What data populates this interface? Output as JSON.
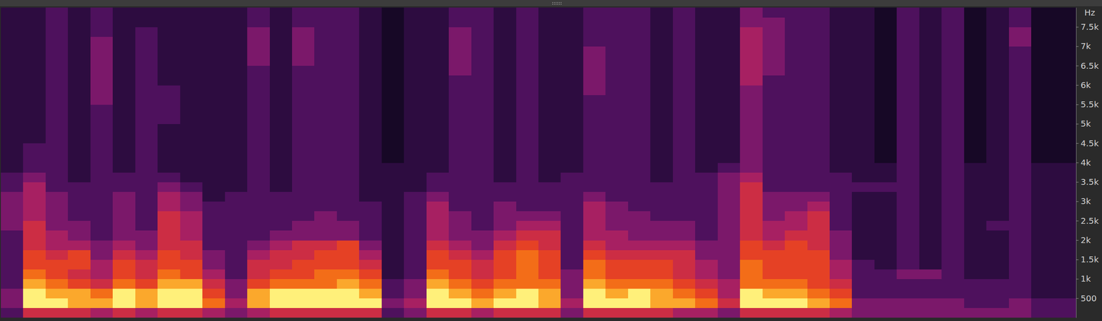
{
  "chart_data": {
    "type": "heatmap",
    "y_label": "Hz",
    "tick_labels": "y",
    "ylim": [
      0,
      8000
    ],
    "yticks": [
      500,
      {
        "value": 1000,
        "label": "1k"
      },
      {
        "value": 1500,
        "label": "1.5k"
      },
      {
        "value": 2000,
        "label": "2k"
      },
      {
        "value": 2500,
        "label": "2.5k"
      },
      {
        "value": 3000,
        "label": "3k"
      },
      {
        "value": 3500,
        "label": "3.5k"
      },
      {
        "value": 4000,
        "label": "4k"
      },
      {
        "value": 4500,
        "label": "4.5k"
      },
      {
        "value": 5000,
        "label": "5k"
      },
      {
        "value": 5500,
        "label": "5.5k"
      },
      {
        "value": 6000,
        "label": "6k"
      },
      {
        "value": 6500,
        "label": "6.5k"
      },
      {
        "value": 7000,
        "label": "7k"
      },
      {
        "value": 7500,
        "label": "7.5k"
      }
    ],
    "zlim": [
      0,
      9
    ],
    "cells": [
      [
        2,
        3,
        3,
        2,
        2,
        2,
        2,
        2,
        2,
        3,
        3,
        3,
        3,
        2,
        2,
        1,
        1,
        1,
        1,
        1,
        1,
        1,
        1,
        1,
        1,
        1,
        1,
        1,
        1,
        1,
        1,
        1
      ],
      [
        5,
        9,
        9,
        8,
        7,
        6,
        6,
        5,
        5,
        5,
        4,
        4,
        4,
        4,
        3,
        2,
        2,
        2,
        1,
        1,
        1,
        1,
        1,
        1,
        1,
        1,
        1,
        1,
        1,
        1,
        1,
        1
      ],
      [
        5,
        9,
        8,
        7,
        6,
        6,
        5,
        4,
        4,
        3,
        3,
        3,
        3,
        2,
        2,
        2,
        2,
        2,
        2,
        2,
        2,
        2,
        2,
        2,
        2,
        2,
        2,
        2,
        2,
        2,
        2,
        2
      ],
      [
        5,
        8,
        8,
        6,
        5,
        6,
        6,
        4,
        3,
        3,
        2,
        2,
        2,
        2,
        1,
        1,
        1,
        1,
        1,
        1,
        1,
        1,
        1,
        1,
        1,
        1,
        1,
        1,
        1,
        1,
        1,
        1
      ],
      [
        4,
        8,
        7,
        5,
        4,
        4,
        3,
        3,
        2,
        2,
        2,
        2,
        2,
        2,
        2,
        2,
        2,
        2,
        2,
        2,
        2,
        2,
        3,
        3,
        3,
        3,
        3,
        3,
        3,
        2,
        2,
        2
      ],
      [
        5,
        9,
        9,
        7,
        6,
        6,
        5,
        4,
        3,
        3,
        3,
        3,
        3,
        2,
        2,
        1,
        1,
        1,
        1,
        1,
        1,
        1,
        1,
        1,
        1,
        1,
        1,
        1,
        1,
        1,
        1,
        1
      ],
      [
        4,
        8,
        8,
        6,
        5,
        5,
        4,
        3,
        3,
        2,
        2,
        2,
        2,
        2,
        2,
        2,
        2,
        2,
        2,
        2,
        2,
        2,
        2,
        2,
        2,
        2,
        2,
        2,
        2,
        2,
        1,
        1
      ],
      [
        5,
        9,
        9,
        8,
        7,
        6,
        6,
        5,
        5,
        5,
        5,
        4,
        4,
        3,
        2,
        1,
        1,
        1,
        1,
        1,
        2,
        2,
        2,
        2,
        1,
        1,
        1,
        1,
        1,
        1,
        1,
        1
      ],
      [
        5,
        9,
        9,
        8,
        6,
        6,
        5,
        5,
        4,
        4,
        4,
        3,
        3,
        2,
        1,
        1,
        1,
        1,
        1,
        1,
        1,
        1,
        1,
        1,
        1,
        1,
        1,
        1,
        1,
        1,
        1,
        1
      ],
      [
        4,
        7,
        6,
        5,
        4,
        3,
        3,
        2,
        2,
        2,
        2,
        2,
        1,
        1,
        1,
        1,
        1,
        1,
        1,
        1,
        1,
        1,
        1,
        1,
        1,
        1,
        1,
        1,
        1,
        1,
        1,
        1
      ],
      [
        3,
        4,
        3,
        3,
        2,
        2,
        2,
        2,
        2,
        2,
        2,
        2,
        2,
        1,
        1,
        1,
        1,
        1,
        1,
        1,
        1,
        1,
        1,
        1,
        1,
        1,
        1,
        1,
        1,
        1,
        1,
        1
      ],
      [
        4,
        8,
        8,
        6,
        5,
        5,
        4,
        3,
        2,
        2,
        2,
        2,
        2,
        2,
        2,
        2,
        2,
        2,
        2,
        2,
        2,
        2,
        2,
        2,
        2,
        2,
        3,
        3,
        3,
        3,
        2,
        2
      ],
      [
        5,
        9,
        9,
        7,
        6,
        5,
        5,
        4,
        3,
        2,
        2,
        2,
        2,
        1,
        1,
        1,
        1,
        1,
        1,
        1,
        1,
        1,
        1,
        1,
        1,
        1,
        1,
        1,
        1,
        1,
        1,
        1
      ],
      [
        5,
        9,
        9,
        7,
        6,
        6,
        5,
        5,
        3,
        3,
        2,
        2,
        2,
        2,
        2,
        2,
        2,
        2,
        2,
        2,
        2,
        2,
        2,
        2,
        2,
        2,
        3,
        3,
        3,
        3,
        2,
        2
      ],
      [
        5,
        9,
        9,
        7,
        7,
        6,
        6,
        5,
        3,
        3,
        3,
        2,
        2,
        2,
        2,
        2,
        2,
        2,
        2,
        2,
        2,
        2,
        2,
        2,
        2,
        2,
        2,
        2,
        2,
        2,
        2,
        2
      ],
      [
        5,
        9,
        9,
        8,
        7,
        6,
        6,
        6,
        3,
        3,
        2,
        2,
        2,
        2,
        2,
        2,
        2,
        2,
        2,
        2,
        2,
        2,
        2,
        2,
        2,
        2,
        2,
        2,
        2,
        2,
        2,
        2
      ],
      [
        5,
        9,
        8,
        7,
        6,
        5,
        4,
        3,
        2,
        2,
        2,
        2,
        1,
        1,
        1,
        1,
        1,
        1,
        1,
        1,
        1,
        1,
        1,
        1,
        1,
        1,
        1,
        1,
        1,
        1,
        1,
        1
      ],
      [
        2,
        3,
        2,
        2,
        1,
        1,
        1,
        1,
        1,
        1,
        1,
        1,
        1,
        1,
        1,
        1,
        0,
        0,
        0,
        0,
        0,
        0,
        0,
        0,
        0,
        0,
        0,
        0,
        0,
        0,
        0,
        0
      ],
      [
        3,
        4,
        3,
        3,
        2,
        2,
        2,
        2,
        2,
        2,
        2,
        2,
        2,
        1,
        1,
        1,
        1,
        1,
        1,
        1,
        1,
        1,
        1,
        1,
        1,
        1,
        1,
        1,
        1,
        1,
        1,
        1
      ],
      [
        5,
        9,
        9,
        8,
        7,
        6,
        6,
        5,
        4,
        4,
        4,
        4,
        3,
        2,
        2,
        1,
        1,
        1,
        1,
        1,
        1,
        1,
        1,
        1,
        1,
        1,
        1,
        1,
        1,
        1,
        1,
        1
      ],
      [
        5,
        9,
        8,
        7,
        6,
        6,
        5,
        4,
        3,
        3,
        3,
        2,
        2,
        2,
        2,
        2,
        2,
        2,
        2,
        2,
        2,
        2,
        2,
        2,
        2,
        3,
        3,
        3,
        3,
        3,
        2,
        2
      ],
      [
        4,
        8,
        7,
        6,
        5,
        5,
        4,
        3,
        3,
        2,
        2,
        2,
        2,
        2,
        2,
        2,
        2,
        2,
        2,
        2,
        2,
        2,
        2,
        2,
        2,
        2,
        2,
        2,
        2,
        2,
        2,
        2
      ],
      [
        5,
        9,
        8,
        7,
        6,
        6,
        6,
        5,
        4,
        3,
        3,
        3,
        2,
        2,
        1,
        1,
        1,
        1,
        1,
        1,
        1,
        1,
        1,
        1,
        1,
        1,
        1,
        1,
        1,
        1,
        1,
        1
      ],
      [
        5,
        9,
        9,
        7,
        7,
        7,
        7,
        6,
        5,
        4,
        3,
        2,
        2,
        2,
        2,
        2,
        2,
        2,
        2,
        2,
        2,
        2,
        2,
        2,
        2,
        2,
        2,
        2,
        2,
        2,
        2,
        2
      ],
      [
        5,
        8,
        8,
        7,
        6,
        6,
        6,
        5,
        5,
        4,
        3,
        2,
        2,
        2,
        1,
        1,
        1,
        1,
        1,
        1,
        1,
        1,
        1,
        1,
        1,
        1,
        1,
        1,
        1,
        1,
        1,
        1
      ],
      [
        3,
        4,
        3,
        3,
        3,
        2,
        2,
        2,
        2,
        2,
        2,
        2,
        2,
        2,
        2,
        1,
        1,
        1,
        1,
        1,
        1,
        1,
        1,
        1,
        1,
        1,
        1,
        1,
        1,
        1,
        1,
        1
      ],
      [
        5,
        9,
        9,
        8,
        7,
        7,
        6,
        5,
        4,
        4,
        4,
        4,
        3,
        2,
        2,
        2,
        2,
        2,
        2,
        2,
        2,
        2,
        2,
        3,
        3,
        3,
        3,
        3,
        2,
        2,
        2,
        2
      ],
      [
        5,
        9,
        8,
        7,
        6,
        6,
        5,
        4,
        4,
        3,
        3,
        3,
        2,
        2,
        2,
        2,
        2,
        2,
        2,
        2,
        2,
        2,
        2,
        2,
        2,
        2,
        2,
        2,
        2,
        2,
        2,
        2
      ],
      [
        5,
        9,
        9,
        7,
        6,
        6,
        5,
        4,
        3,
        3,
        3,
        2,
        2,
        2,
        2,
        2,
        2,
        2,
        2,
        2,
        2,
        2,
        2,
        2,
        2,
        2,
        2,
        2,
        2,
        2,
        2,
        2
      ],
      [
        5,
        8,
        8,
        7,
        6,
        6,
        5,
        4,
        3,
        3,
        2,
        2,
        2,
        2,
        1,
        1,
        1,
        1,
        1,
        1,
        1,
        1,
        1,
        1,
        1,
        1,
        1,
        1,
        1,
        1,
        1,
        1
      ],
      [
        4,
        8,
        7,
        6,
        5,
        5,
        5,
        4,
        3,
        3,
        2,
        2,
        2,
        2,
        2,
        2,
        2,
        2,
        2,
        2,
        2,
        2,
        2,
        2,
        2,
        2,
        2,
        2,
        2,
        2,
        2,
        2
      ],
      [
        4,
        7,
        6,
        5,
        4,
        4,
        3,
        3,
        2,
        2,
        2,
        2,
        2,
        2,
        2,
        1,
        1,
        1,
        1,
        1,
        1,
        1,
        1,
        1,
        1,
        1,
        1,
        1,
        1,
        1,
        1,
        1
      ],
      [
        3,
        5,
        4,
        4,
        3,
        3,
        3,
        3,
        3,
        3,
        3,
        3,
        3,
        3,
        3,
        2,
        1,
        1,
        1,
        1,
        1,
        1,
        1,
        1,
        1,
        1,
        1,
        1,
        1,
        1,
        1,
        1
      ],
      [
        5,
        9,
        9,
        7,
        7,
        7,
        6,
        6,
        5,
        5,
        5,
        5,
        5,
        5,
        4,
        3,
        3,
        3,
        3,
        3,
        3,
        3,
        3,
        3,
        4,
        4,
        4,
        4,
        4,
        4,
        3,
        3
      ],
      [
        5,
        9,
        8,
        7,
        6,
        6,
        6,
        5,
        4,
        4,
        3,
        3,
        3,
        2,
        2,
        2,
        2,
        2,
        2,
        2,
        2,
        2,
        2,
        2,
        2,
        3,
        3,
        3,
        3,
        3,
        3,
        2
      ],
      [
        5,
        9,
        8,
        7,
        6,
        6,
        6,
        6,
        5,
        4,
        4,
        3,
        3,
        2,
        2,
        2,
        2,
        2,
        2,
        2,
        2,
        2,
        2,
        2,
        2,
        2,
        2,
        2,
        2,
        2,
        2,
        2
      ],
      [
        5,
        8,
        7,
        6,
        6,
        6,
        6,
        5,
        5,
        5,
        5,
        4,
        3,
        2,
        2,
        2,
        2,
        2,
        2,
        2,
        2,
        2,
        2,
        2,
        2,
        2,
        2,
        2,
        2,
        2,
        2,
        2
      ],
      [
        4,
        7,
        6,
        5,
        4,
        4,
        3,
        3,
        3,
        2,
        2,
        2,
        2,
        2,
        2,
        1,
        1,
        1,
        1,
        1,
        1,
        1,
        1,
        1,
        1,
        1,
        1,
        1,
        1,
        1,
        1,
        1
      ],
      [
        3,
        3,
        2,
        2,
        2,
        2,
        1,
        1,
        1,
        1,
        1,
        1,
        1,
        2,
        1,
        1,
        1,
        1,
        1,
        1,
        1,
        1,
        1,
        1,
        1,
        1,
        1,
        1,
        1,
        1,
        1,
        1
      ],
      [
        3,
        3,
        2,
        2,
        2,
        1,
        1,
        1,
        1,
        1,
        1,
        1,
        1,
        2,
        1,
        1,
        0,
        0,
        0,
        0,
        0,
        0,
        0,
        0,
        0,
        0,
        0,
        0,
        0,
        0,
        0,
        0
      ],
      [
        3,
        3,
        2,
        2,
        3,
        2,
        2,
        2,
        2,
        2,
        2,
        2,
        2,
        2,
        2,
        2,
        2,
        2,
        2,
        2,
        2,
        2,
        2,
        2,
        2,
        2,
        2,
        2,
        2,
        2,
        2,
        2
      ],
      [
        3,
        3,
        2,
        2,
        3,
        1,
        1,
        1,
        1,
        1,
        1,
        1,
        1,
        1,
        1,
        1,
        1,
        1,
        1,
        1,
        1,
        1,
        1,
        1,
        1,
        1,
        1,
        1,
        1,
        1,
        1,
        1
      ],
      [
        3,
        3,
        2,
        2,
        2,
        2,
        2,
        2,
        2,
        2,
        2,
        2,
        2,
        2,
        2,
        2,
        2,
        2,
        2,
        2,
        2,
        2,
        2,
        2,
        2,
        2,
        2,
        2,
        2,
        2,
        2,
        2
      ],
      [
        3,
        2,
        2,
        2,
        1,
        1,
        1,
        1,
        1,
        1,
        1,
        1,
        1,
        1,
        1,
        1,
        0,
        0,
        0,
        0,
        0,
        0,
        0,
        0,
        0,
        0,
        0,
        0,
        0,
        0,
        0,
        0
      ],
      [
        3,
        2,
        2,
        2,
        1,
        1,
        1,
        1,
        1,
        2,
        1,
        1,
        1,
        1,
        1,
        1,
        1,
        1,
        1,
        1,
        1,
        1,
        1,
        1,
        1,
        1,
        1,
        1,
        1,
        1,
        1,
        1
      ],
      [
        3,
        3,
        2,
        2,
        2,
        2,
        2,
        2,
        2,
        2,
        2,
        2,
        2,
        2,
        2,
        2,
        2,
        2,
        2,
        2,
        2,
        2,
        2,
        2,
        2,
        2,
        2,
        2,
        3,
        3,
        2,
        2
      ],
      [
        2,
        2,
        1,
        1,
        1,
        1,
        1,
        1,
        1,
        1,
        1,
        1,
        1,
        1,
        1,
        1,
        0,
        0,
        0,
        0,
        0,
        0,
        0,
        0,
        0,
        0,
        0,
        0,
        0,
        0,
        0,
        0
      ],
      [
        2,
        2,
        1,
        1,
        1,
        1,
        1,
        1,
        1,
        1,
        1,
        1,
        1,
        1,
        1,
        1,
        0,
        0,
        0,
        0,
        0,
        0,
        0,
        0,
        0,
        0,
        0,
        0,
        0,
        0,
        0,
        0
      ]
    ]
  }
}
